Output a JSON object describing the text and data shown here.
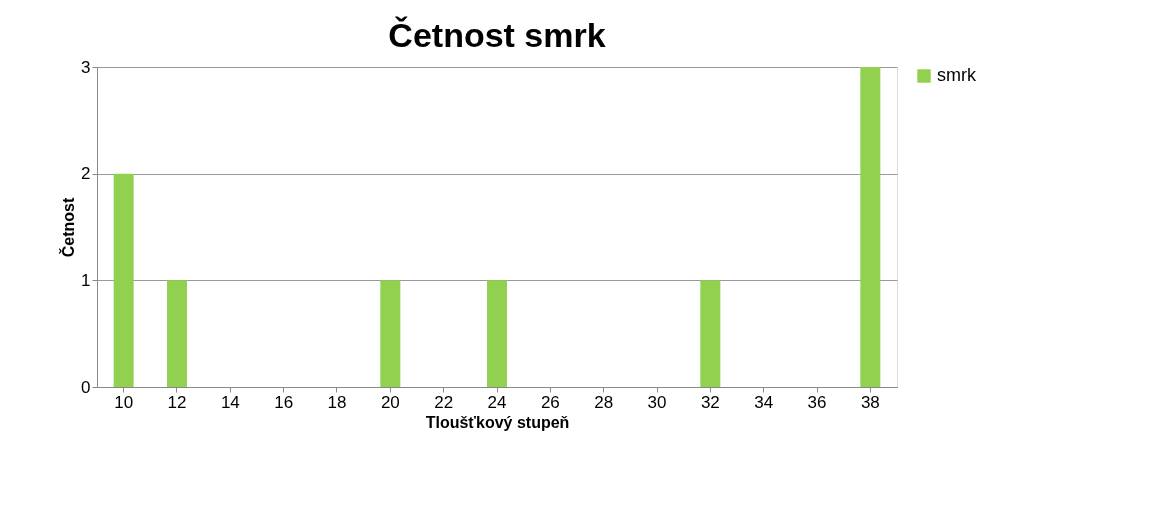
{
  "chart_data": {
    "type": "bar",
    "title": "Četnost smrk",
    "xlabel": "Tloušťkový stupeň",
    "ylabel": "Četnost",
    "categories": [
      "10",
      "12",
      "14",
      "16",
      "18",
      "20",
      "22",
      "24",
      "26",
      "28",
      "30",
      "32",
      "34",
      "36",
      "38"
    ],
    "series": [
      {
        "name": "smrk",
        "color": "#92d050",
        "values": [
          2,
          1,
          0,
          0,
          0,
          1,
          0,
          1,
          0,
          0,
          0,
          1,
          0,
          0,
          3
        ]
      }
    ],
    "ylim": [
      0,
      3
    ],
    "yticks": [
      0,
      1,
      2,
      3
    ],
    "grid": "y",
    "legend": "right"
  }
}
